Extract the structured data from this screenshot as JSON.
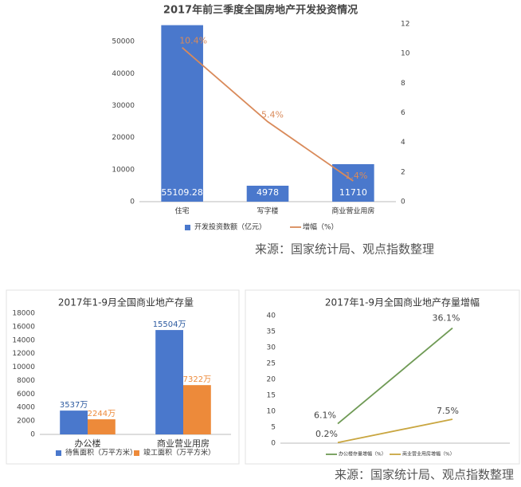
{
  "chart_data": [
    {
      "type": "bar",
      "title": "2017年前三季度全国房地产开发投资情况",
      "categories": [
        "住宅",
        "写字楼",
        "商业营业用房"
      ],
      "series": [
        {
          "name": "开发投资数额（亿元）",
          "type": "bar",
          "color": "#4a78cc",
          "values": [
            55109.28,
            4978,
            11710
          ]
        },
        {
          "name": "增幅（%）",
          "type": "line",
          "axis": "y2",
          "color": "#d98a5a",
          "values": [
            10.4,
            5.4,
            1.4
          ],
          "value_labels": [
            "10.4%",
            "5.4%",
            "1.4%"
          ]
        }
      ],
      "ylim": [
        0,
        55500
      ],
      "yticks": [
        0,
        10000,
        20000,
        30000,
        40000,
        50000
      ],
      "y2lim": [
        0,
        12
      ],
      "y2ticks": [
        0,
        2,
        4,
        6,
        8,
        10,
        12
      ],
      "grid": false,
      "legend": "bottom"
    },
    {
      "type": "bar",
      "title": "2017年1-9月全国商业地产存量",
      "categories": [
        "办公楼",
        "商业营业用房"
      ],
      "series": [
        {
          "name": "待售面积（万平方米）",
          "type": "bar",
          "color": "#4a78cc",
          "values": [
            3537,
            15504
          ],
          "value_labels": [
            "3537万",
            "15504万"
          ]
        },
        {
          "name": "竣工面积（万平方米）",
          "type": "bar",
          "color": "#ed8a3a",
          "values": [
            2244,
            7322
          ],
          "value_labels": [
            "2244万",
            "7322万"
          ]
        }
      ],
      "ylim": [
        0,
        18000
      ],
      "yticks": [
        0,
        2000,
        4000,
        6000,
        8000,
        10000,
        12000,
        14000,
        16000,
        18000
      ],
      "grid": false,
      "legend": "bottom"
    },
    {
      "type": "line",
      "title": "2017年1-9月全国商业地产存量增幅",
      "categories": [
        null,
        null
      ],
      "series": [
        {
          "name": "办公楼存量增幅（%）",
          "type": "line",
          "color": "#6f9a55",
          "values": [
            6.1,
            36.1
          ],
          "value_labels": [
            "6.1%",
            "36.1%"
          ]
        },
        {
          "name": "商业营业用房增幅（%）",
          "type": "line",
          "color": "#c9a640",
          "values": [
            0.2,
            7.5
          ],
          "value_labels": [
            "0.2%",
            "7.5%"
          ]
        }
      ],
      "ylim": [
        0,
        40
      ],
      "yticks": [
        0,
        5,
        10,
        15,
        20,
        25,
        30,
        35,
        40
      ],
      "grid": false,
      "legend": "bottom"
    }
  ],
  "sources": [
    "来源：国家统计局、观点指数整理",
    "来源：国家统计局、观点指数整理"
  ]
}
